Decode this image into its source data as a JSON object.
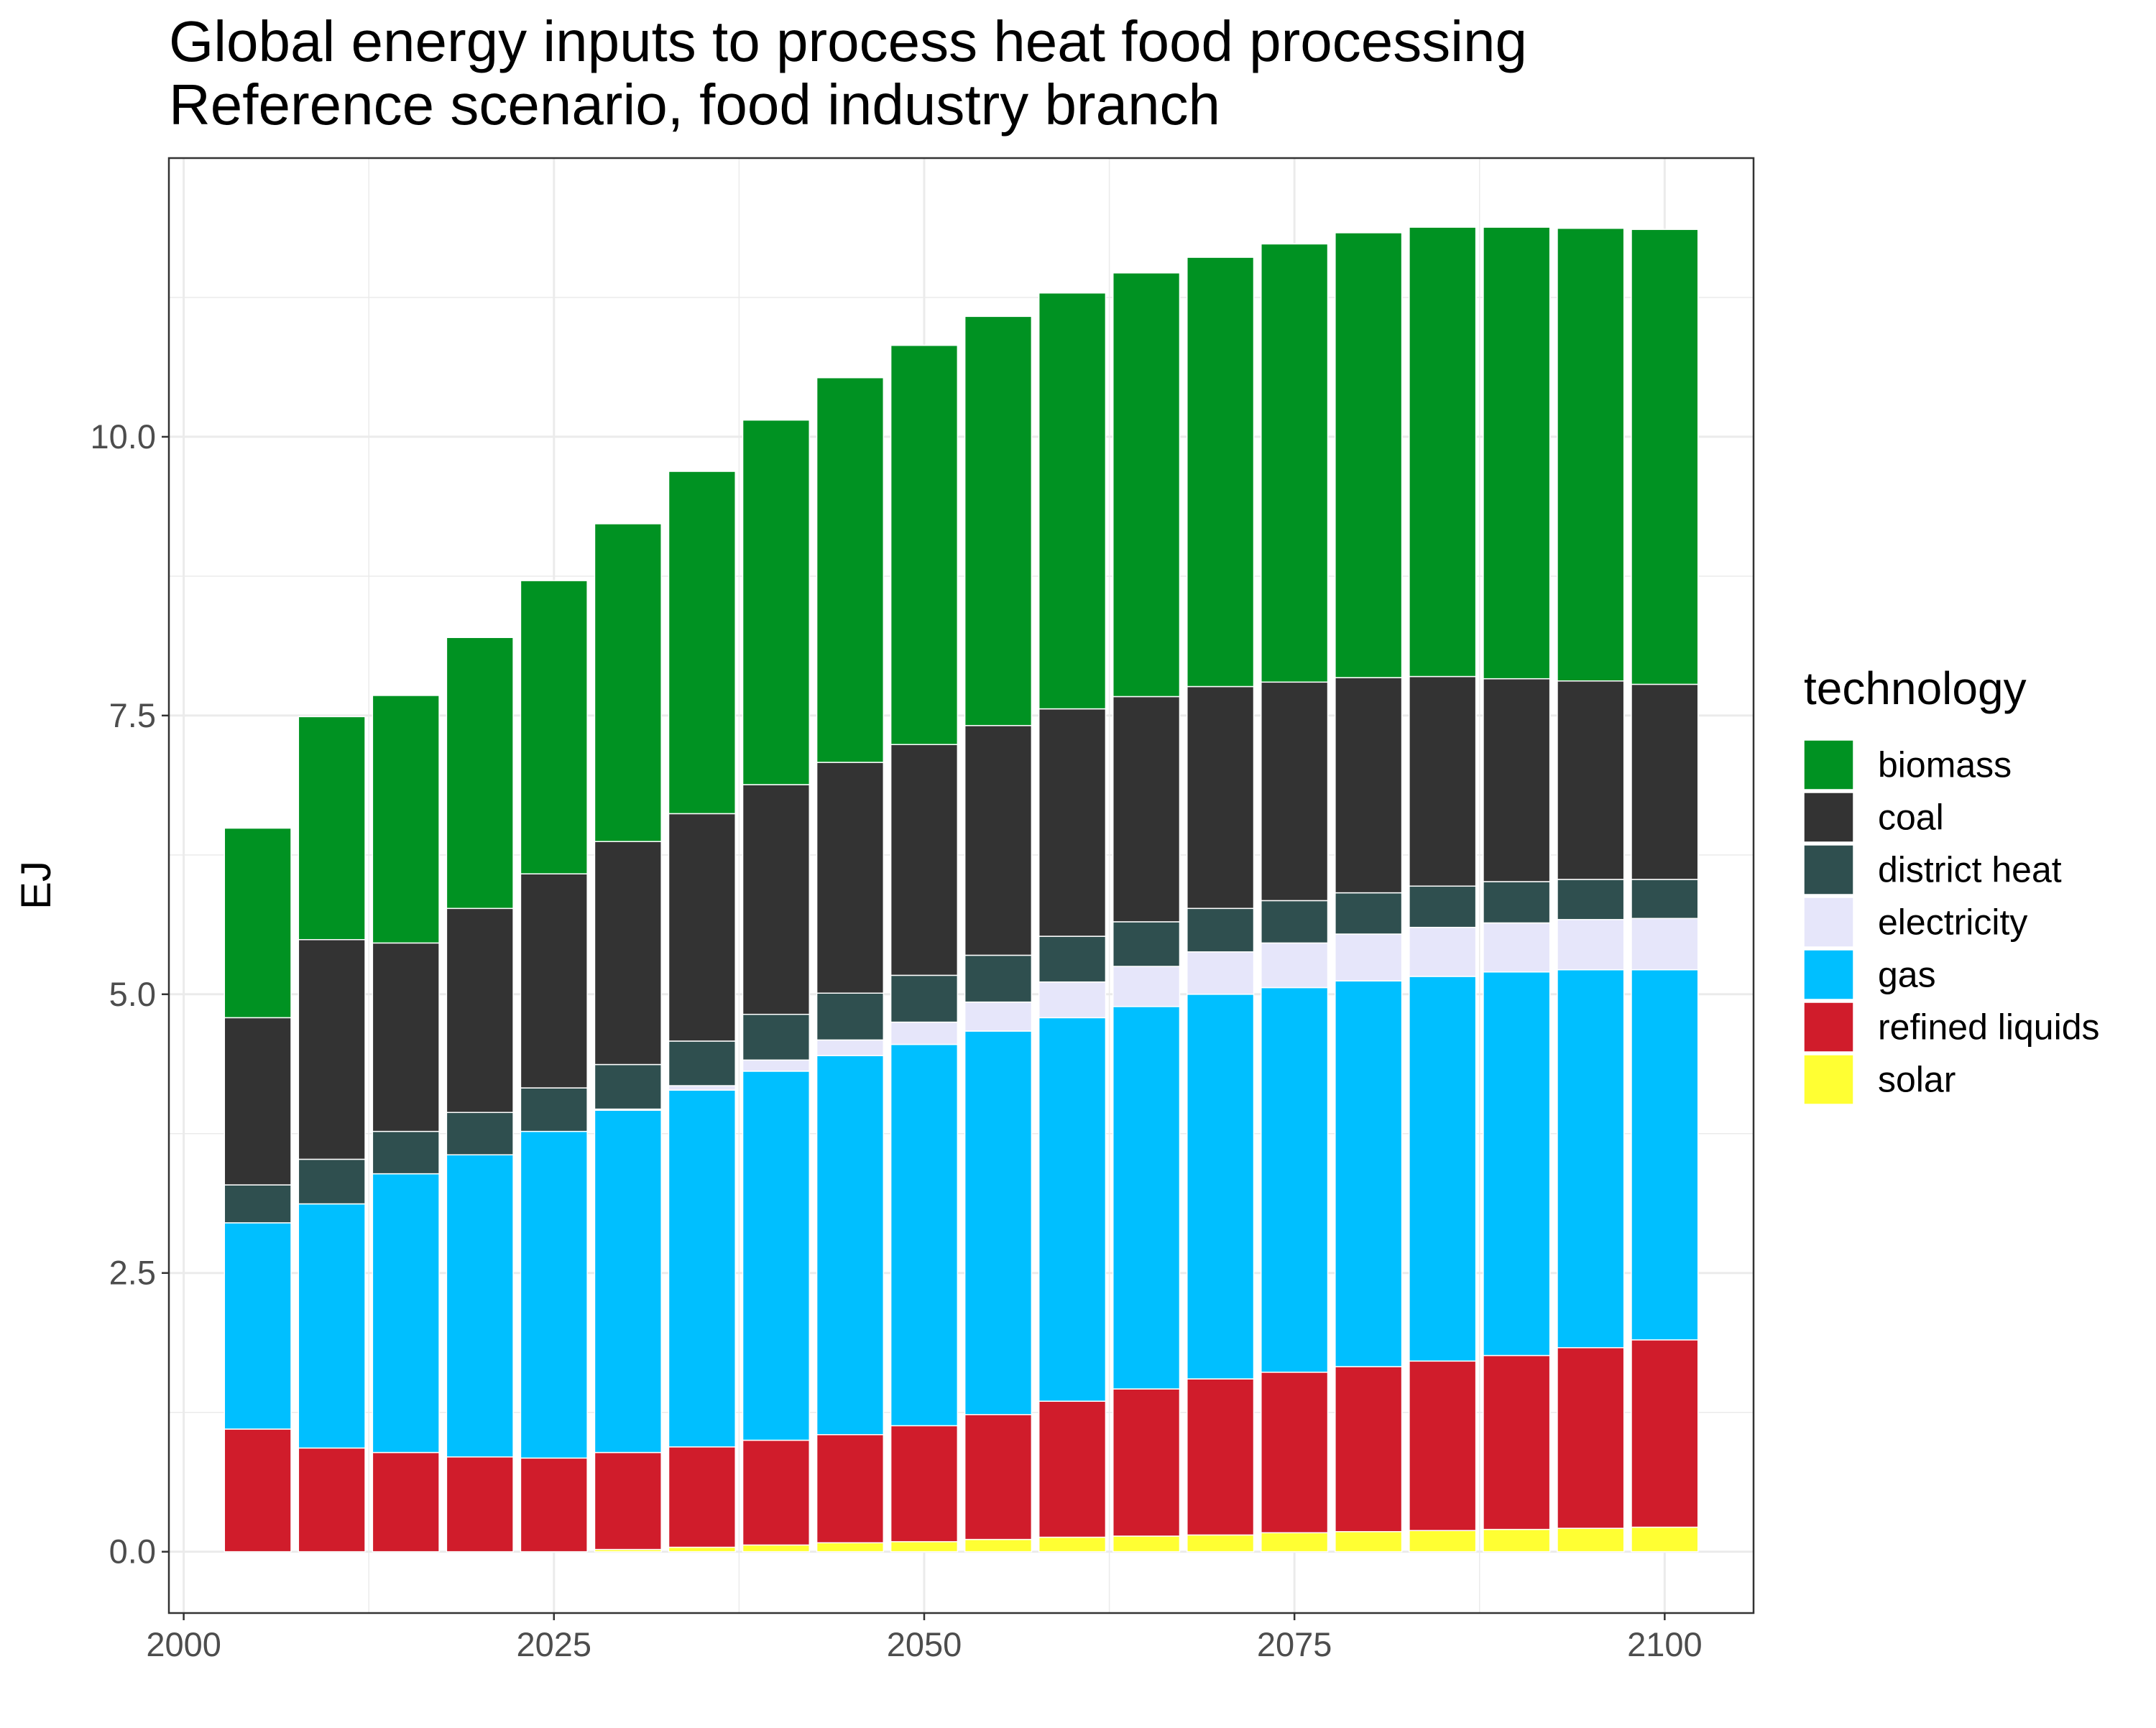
{
  "chart_data": {
    "type": "bar",
    "stacked": true,
    "title": "Global energy inputs to process heat food processing",
    "subtitle": "Reference scenario, food industry branch",
    "xlabel": "",
    "ylabel": "EJ",
    "xlim": [
      1999,
      2106
    ],
    "ylim": [
      -0.55,
      12.5
    ],
    "x_ticks": [
      2000,
      2025,
      2050,
      2075,
      2100
    ],
    "x_tick_labels": [
      "2000",
      "2025",
      "2050",
      "2075",
      "2100"
    ],
    "y_ticks": [
      0,
      2.5,
      5,
      7.5,
      10
    ],
    "y_tick_labels": [
      "0.0",
      "2.5",
      "5.0",
      "7.5",
      "10.0"
    ],
    "grid": true,
    "legend_title": "technology",
    "legend_position": "right",
    "x": [
      2005,
      2010,
      2015,
      2020,
      2025,
      2030,
      2035,
      2040,
      2045,
      2050,
      2055,
      2060,
      2065,
      2070,
      2075,
      2080,
      2085,
      2090,
      2095,
      2100
    ],
    "series": [
      {
        "name": "solar",
        "color": "#FFFF33",
        "values": [
          0.0,
          0.0,
          0.0,
          0.0,
          0.0,
          0.02,
          0.04,
          0.06,
          0.08,
          0.09,
          0.11,
          0.13,
          0.14,
          0.15,
          0.17,
          0.18,
          0.19,
          0.2,
          0.21,
          0.22
        ]
      },
      {
        "name": "refined liquids",
        "color": "#D01C2B",
        "values": [
          1.1,
          0.93,
          0.89,
          0.85,
          0.84,
          0.87,
          0.9,
          0.94,
          0.97,
          1.04,
          1.12,
          1.22,
          1.32,
          1.4,
          1.44,
          1.48,
          1.52,
          1.56,
          1.62,
          1.68
        ]
      },
      {
        "name": "gas",
        "color": "#00BFFF",
        "values": [
          1.85,
          2.19,
          2.5,
          2.71,
          2.93,
          3.07,
          3.2,
          3.31,
          3.4,
          3.42,
          3.44,
          3.44,
          3.43,
          3.45,
          3.45,
          3.46,
          3.45,
          3.44,
          3.39,
          3.32
        ]
      },
      {
        "name": "electricity",
        "color": "#E6E6FA",
        "values": [
          0.0,
          0.0,
          0.0,
          0.0,
          0.0,
          0.01,
          0.04,
          0.1,
          0.14,
          0.2,
          0.26,
          0.32,
          0.36,
          0.38,
          0.4,
          0.42,
          0.44,
          0.44,
          0.45,
          0.46
        ]
      },
      {
        "name": "district heat",
        "color": "#2F4F4F",
        "values": [
          0.34,
          0.4,
          0.38,
          0.38,
          0.39,
          0.4,
          0.4,
          0.41,
          0.42,
          0.42,
          0.42,
          0.41,
          0.4,
          0.39,
          0.38,
          0.37,
          0.37,
          0.37,
          0.36,
          0.35
        ]
      },
      {
        "name": "coal",
        "color": "#333333",
        "values": [
          1.5,
          1.97,
          1.69,
          1.83,
          1.92,
          2.0,
          2.04,
          2.06,
          2.07,
          2.07,
          2.06,
          2.04,
          2.02,
          1.99,
          1.96,
          1.93,
          1.88,
          1.82,
          1.78,
          1.75
        ]
      },
      {
        "name": "biomass",
        "color": "#009222",
        "values": [
          1.7,
          2.0,
          2.22,
          2.43,
          2.63,
          2.85,
          3.07,
          3.27,
          3.45,
          3.58,
          3.67,
          3.73,
          3.8,
          3.85,
          3.93,
          3.99,
          4.03,
          4.05,
          4.06,
          4.08
        ]
      }
    ]
  }
}
